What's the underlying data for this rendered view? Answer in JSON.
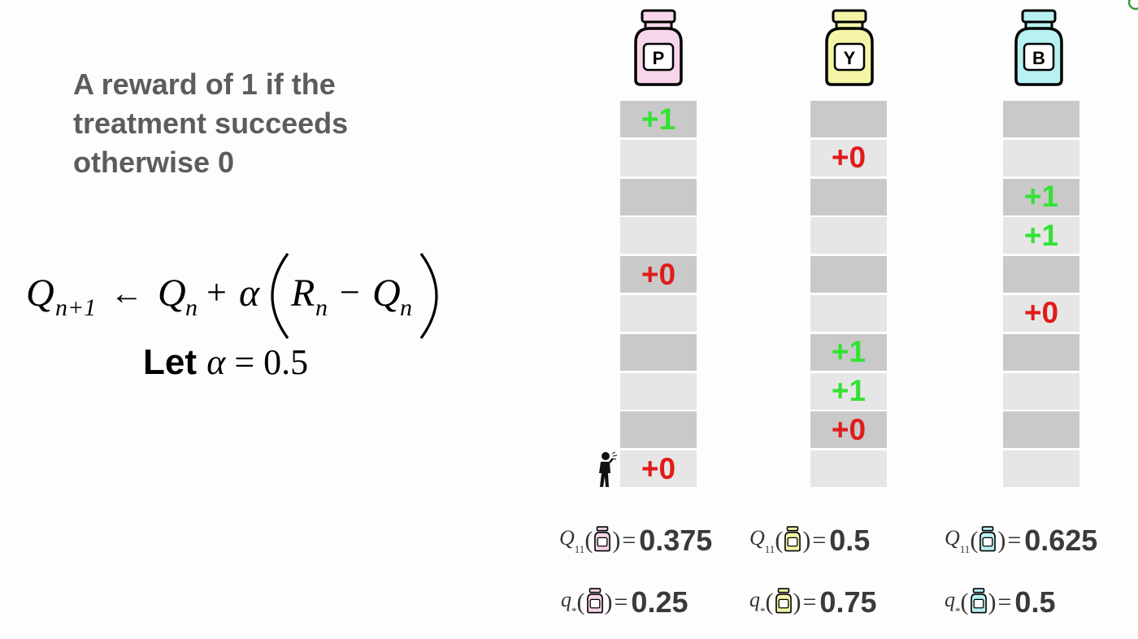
{
  "reward_text": {
    "line1": "A reward of 1 if the",
    "line2": "treatment succeeds",
    "line3": "otherwise 0"
  },
  "formula": {
    "q_next": "Q",
    "q_next_sub": "n+1",
    "arrow": "←",
    "q_n": "Q",
    "q_n_sub": "n",
    "plus": "+",
    "alpha": "α",
    "r_n": "R",
    "r_n_sub": "n",
    "minus": "−",
    "q_n2": "Q",
    "q_n2_sub": "n"
  },
  "let_line": {
    "let": "Let",
    "alpha": "α",
    "equals": "=",
    "value": "0.5"
  },
  "bottles": [
    {
      "letter": "P",
      "color": "#f7d5ea"
    },
    {
      "letter": "Y",
      "color": "#f4f5a6"
    },
    {
      "letter": "B",
      "color": "#b8f1f1"
    }
  ],
  "columns": [
    {
      "cells": [
        "+1",
        "",
        "",
        "",
        "+0",
        "",
        "",
        "",
        "",
        "+0"
      ]
    },
    {
      "cells": [
        "",
        "+0",
        "",
        "",
        "",
        "",
        "+1",
        "+1",
        "+0",
        ""
      ]
    },
    {
      "cells": [
        "",
        "",
        "+1",
        "+1",
        "",
        "+0",
        "",
        "",
        "",
        ""
      ]
    }
  ],
  "estimates": [
    {
      "symbol": "Q",
      "sub": "11",
      "value": "0.375"
    },
    {
      "symbol": "Q",
      "sub": "11",
      "value": "0.5"
    },
    {
      "symbol": "Q",
      "sub": "11",
      "value": "0.625"
    }
  ],
  "true_values": [
    {
      "symbol": "q",
      "sub": "*",
      "value": "0.25"
    },
    {
      "symbol": "q",
      "sub": "*",
      "value": "0.75"
    },
    {
      "symbol": "q",
      "sub": "*",
      "value": "0.5"
    }
  ],
  "colors": {
    "positive_reward": "#33e233",
    "zero_reward": "#e01b1b",
    "cell_dark": "#c9c9c9",
    "cell_light": "#e6e6e6"
  }
}
